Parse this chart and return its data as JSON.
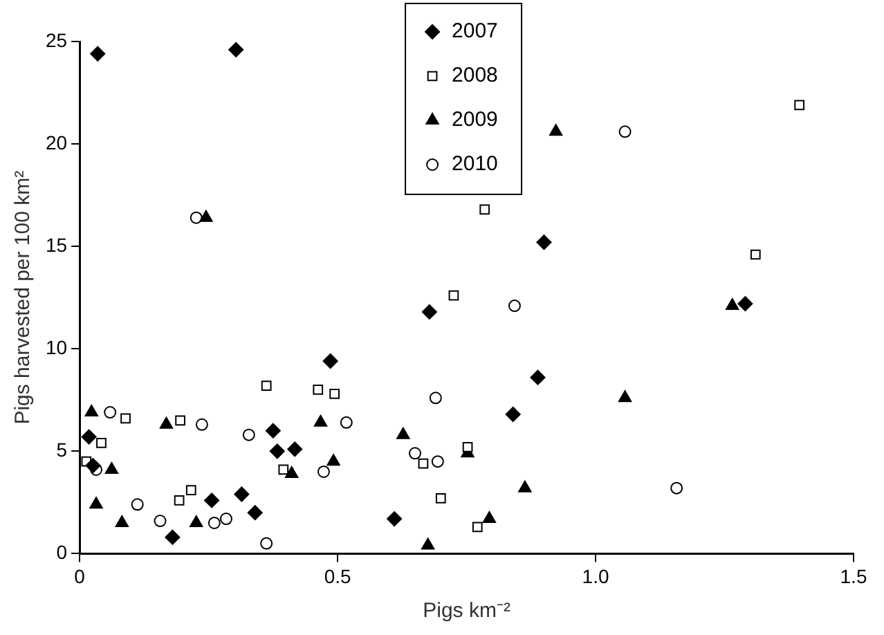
{
  "chart_data": {
    "type": "scatter",
    "xlabel": "Pigs km⁻²",
    "ylabel": "Pigs harvested per 100 km²",
    "xlim": [
      0,
      1.5
    ],
    "xticks": [
      0,
      0.5,
      {
        "value": 1,
        "label": "1.0"
      },
      1.5
    ],
    "ylim": [
      0,
      25
    ],
    "yticks": [
      0,
      5,
      10,
      15,
      20,
      25
    ],
    "grid": false,
    "legend": "top",
    "series": [
      {
        "name": "2007",
        "color": "#000000",
        "marker": "diamond",
        "x": [
          0.035,
          0.303,
          0.9,
          1.29,
          0.888,
          0.84,
          0.018,
          0.026,
          0.18,
          0.256,
          0.314,
          0.34,
          0.375,
          0.383,
          0.417,
          0.486,
          0.678,
          0.61
        ],
        "values": [
          24.4,
          24.6,
          15.2,
          12.2,
          8.6,
          6.8,
          5.7,
          4.3,
          0.8,
          2.6,
          2.9,
          2.0,
          6.0,
          5.0,
          5.1,
          9.4,
          11.8,
          1.7
        ]
      },
      {
        "name": "2008",
        "color": "#000000",
        "marker": "square",
        "x": [
          0.013,
          0.042,
          0.089,
          0.195,
          0.193,
          0.216,
          0.362,
          0.395,
          0.462,
          0.494,
          0.725,
          0.666,
          0.7,
          0.752,
          0.771,
          1.31,
          1.395,
          0.785
        ],
        "values": [
          4.5,
          5.4,
          6.6,
          6.5,
          2.6,
          3.1,
          8.2,
          4.1,
          8.0,
          7.8,
          12.6,
          4.4,
          2.7,
          5.2,
          1.3,
          14.6,
          21.9,
          16.8
        ]
      },
      {
        "name": "2009",
        "color": "#000000",
        "marker": "triangle",
        "x": [
          0.245,
          0.923,
          1.265,
          1.057,
          0.752,
          0.863,
          0.794,
          0.023,
          0.032,
          0.062,
          0.082,
          0.168,
          0.226,
          0.411,
          0.467,
          0.492,
          0.627,
          0.675
        ],
        "values": [
          16.4,
          20.6,
          12.1,
          7.6,
          4.9,
          3.2,
          1.7,
          6.9,
          2.4,
          4.1,
          1.5,
          6.3,
          1.5,
          3.9,
          6.4,
          4.5,
          5.8,
          0.4
        ]
      },
      {
        "name": "2010",
        "color": "#000000",
        "marker": "circle",
        "x": [
          0.226,
          1.057,
          0.843,
          1.157,
          0.032,
          0.059,
          0.112,
          0.156,
          0.237,
          0.261,
          0.284,
          0.328,
          0.362,
          0.473,
          0.517,
          0.65,
          0.69,
          0.694
        ],
        "values": [
          16.4,
          20.6,
          12.1,
          3.2,
          4.1,
          6.9,
          2.4,
          1.6,
          6.3,
          1.5,
          1.7,
          5.8,
          0.5,
          4.0,
          6.4,
          4.9,
          7.6,
          4.5
        ]
      }
    ]
  }
}
